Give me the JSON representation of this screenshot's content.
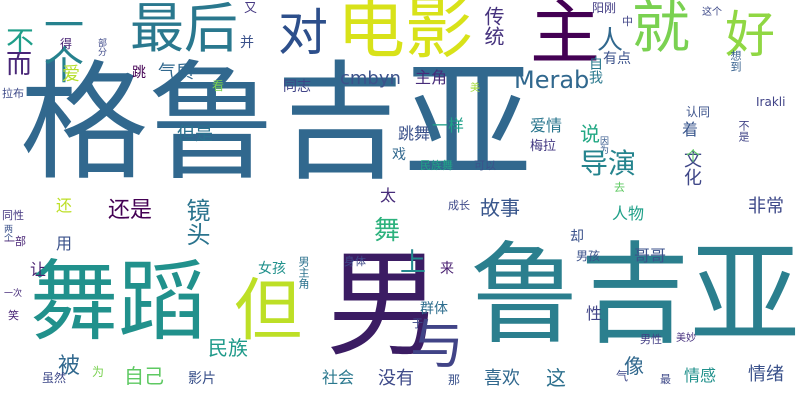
{
  "cloud": {
    "background": "#ffffff",
    "words": [
      {
        "text": "格鲁吉亚",
        "color": "#31688e"
      },
      {
        "text": "鲁吉亚",
        "color": "#2b7f8e"
      },
      {
        "text": "舞蹈",
        "color": "#21918c"
      },
      {
        "text": "男",
        "color": "#3b1c63"
      },
      {
        "text": "电影",
        "color": "#d8e219"
      },
      {
        "text": "主",
        "color": "#440154"
      },
      {
        "text": "就",
        "color": "#7ad151"
      },
      {
        "text": "好",
        "color": "#90d743"
      },
      {
        "text": "最后",
        "color": "#2a788e"
      },
      {
        "text": "对",
        "color": "#2d4f8b"
      },
      {
        "text": "一个",
        "color": "#26828e"
      },
      {
        "text": "但",
        "color": "#bddf26"
      },
      {
        "text": "与",
        "color": "#414487"
      },
      {
        "text": "传统",
        "color": "#46337e"
      },
      {
        "text": "人",
        "color": "#31688e"
      },
      {
        "text": "不",
        "color": "#1f9e89"
      },
      {
        "text": "而",
        "color": "#482677"
      },
      {
        "text": "Merab",
        "color": "#31688e"
      },
      {
        "text": "cmbyn",
        "color": "#3b528b"
      },
      {
        "text": "主角",
        "color": "#472c7a"
      },
      {
        "text": "气质",
        "color": "#31688e"
      },
      {
        "text": "同志",
        "color": "#404387"
      },
      {
        "text": "自我",
        "color": "#2a788e"
      },
      {
        "text": "有点",
        "color": "#3b528b"
      },
      {
        "text": "阳刚",
        "color": "#433d84"
      },
      {
        "text": "想到",
        "color": "#355f8d"
      },
      {
        "text": "这个",
        "color": "#3e4a89"
      },
      {
        "text": "中",
        "color": "#414487"
      },
      {
        "text": "又",
        "color": "#453882"
      },
      {
        "text": "并",
        "color": "#3b528b"
      },
      {
        "text": "得",
        "color": "#482374"
      },
      {
        "text": "部分",
        "color": "#3e4989"
      },
      {
        "text": "跳",
        "color": "#440154"
      },
      {
        "text": "看",
        "color": "#7ad151"
      },
      {
        "text": "爱",
        "color": "#b5de2b"
      },
      {
        "text": "拉布",
        "color": "#3e4a89"
      },
      {
        "text": "美",
        "color": "#a2da37"
      },
      {
        "text": "但是",
        "color": "#2c728e"
      },
      {
        "text": "跳舞",
        "color": "#3b528b"
      },
      {
        "text": "一样",
        "color": "#1fa088"
      },
      {
        "text": "爱情",
        "color": "#2a768e"
      },
      {
        "text": "说",
        "color": "#22a884"
      },
      {
        "text": "着",
        "color": "#39568c"
      },
      {
        "text": "认同",
        "color": "#3b528b"
      },
      {
        "text": "Irakli",
        "color": "#404387"
      },
      {
        "text": "不是",
        "color": "#414487"
      },
      {
        "text": "因为",
        "color": "#375a8c"
      },
      {
        "text": "导演",
        "color": "#25848e"
      },
      {
        "text": "文化",
        "color": "#3f4788"
      },
      {
        "text": "个",
        "color": "#5ec962"
      },
      {
        "text": "镜头",
        "color": "#2b748e"
      },
      {
        "text": "戏",
        "color": "#31688e"
      },
      {
        "text": "梅拉",
        "color": "#443983"
      },
      {
        "text": "民族舞",
        "color": "#20a386"
      },
      {
        "text": "可以",
        "color": "#3b528b"
      },
      {
        "text": "舞",
        "color": "#2db27d"
      },
      {
        "text": "还是",
        "color": "#440154"
      },
      {
        "text": "故事",
        "color": "#39568c"
      },
      {
        "text": "人物",
        "color": "#1fa088"
      },
      {
        "text": "成长",
        "color": "#3e4a89"
      },
      {
        "text": "去",
        "color": "#5ec962"
      },
      {
        "text": "太",
        "color": "#472c7a"
      },
      {
        "text": "非常",
        "color": "#3e4989"
      },
      {
        "text": "还",
        "color": "#bddf26"
      },
      {
        "text": "同性",
        "color": "#453781"
      },
      {
        "text": "两个",
        "color": "#3b528b"
      },
      {
        "text": "一部",
        "color": "#482475"
      },
      {
        "text": "用",
        "color": "#3b528b"
      },
      {
        "text": "却",
        "color": "#3b528b"
      },
      {
        "text": "男孩",
        "color": "#3b528b"
      },
      {
        "text": "哥哥",
        "color": "#3b528b"
      },
      {
        "text": "女孩",
        "color": "#21918c"
      },
      {
        "text": "男主角",
        "color": "#2c728e"
      },
      {
        "text": "身体",
        "color": "#3e4989"
      },
      {
        "text": "来",
        "color": "#481f70"
      },
      {
        "text": "上",
        "color": "#23898e"
      },
      {
        "text": "让",
        "color": "#481f70"
      },
      {
        "text": "一次",
        "color": "#472d7b"
      },
      {
        "text": "群体",
        "color": "#2e6e8e"
      },
      {
        "text": "于",
        "color": "#3e4989"
      },
      {
        "text": "性",
        "color": "#414487"
      },
      {
        "text": "笑",
        "color": "#482475"
      },
      {
        "text": "男性",
        "color": "#433e85"
      },
      {
        "text": "美妙",
        "color": "#46307e"
      },
      {
        "text": "民族",
        "color": "#1f9a8a"
      },
      {
        "text": "被",
        "color": "#31688e"
      },
      {
        "text": "自己",
        "color": "#5ec962"
      },
      {
        "text": "虽然",
        "color": "#3e4989"
      },
      {
        "text": "为",
        "color": "#7ad151"
      },
      {
        "text": "影片",
        "color": "#3b528b"
      },
      {
        "text": "社会",
        "color": "#2a788e"
      },
      {
        "text": "没有",
        "color": "#3e4a89"
      },
      {
        "text": "那",
        "color": "#3b528b"
      },
      {
        "text": "喜欢",
        "color": "#31688e"
      },
      {
        "text": "这",
        "color": "#2d708e"
      },
      {
        "text": "像",
        "color": "#31688e"
      },
      {
        "text": "气",
        "color": "#3e4989"
      },
      {
        "text": "最",
        "color": "#3e4989"
      },
      {
        "text": "情感",
        "color": "#21918c"
      },
      {
        "text": "情绪",
        "color": "#3b528b"
      }
    ]
  }
}
